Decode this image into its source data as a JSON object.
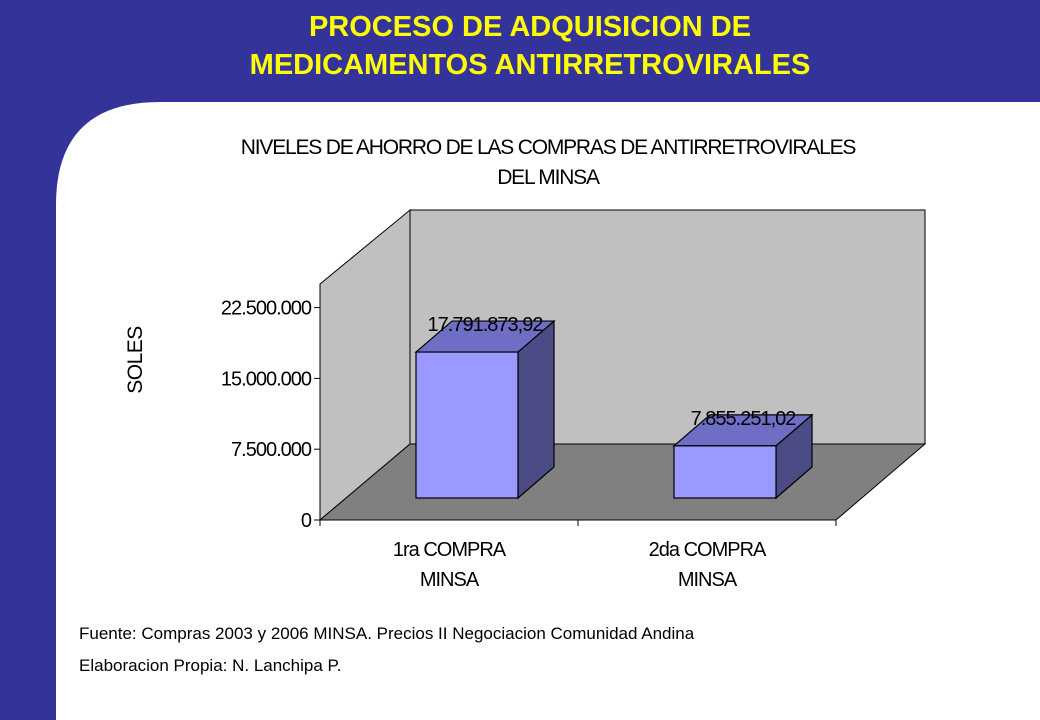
{
  "slide": {
    "title_line1": "PROCESO DE ADQUISICION DE",
    "title_line2": "MEDICAMENTOS ANTIRRETROVIRALES",
    "colors": {
      "frame": "#333399",
      "title": "#ffff00"
    }
  },
  "chart_data": {
    "type": "bar",
    "title_line1": "NIVELES DE AHORRO DE LAS COMPRAS DE ANTIRRETROVIRALES",
    "title_line2": "DEL MINSA",
    "ylabel": "SOLES",
    "xlabel": "",
    "ylim": [
      0,
      25000000
    ],
    "yticks": [
      0,
      7500000,
      15000000,
      22500000
    ],
    "ytick_labels": [
      "0",
      "7.500.000",
      "15.000.000",
      "22.500.000"
    ],
    "categories": [
      [
        "1ra COMPRA",
        "MINSA"
      ],
      [
        "2da COMPRA",
        "MINSA"
      ]
    ],
    "values": [
      17791873.92,
      7855251.02
    ],
    "value_labels": [
      "17.791.873,92",
      "7.855.251,02"
    ],
    "grid": false,
    "legend": "none",
    "three_d": true,
    "colors": {
      "bar_front": "#9999ff",
      "bar_side": "#4b4b86",
      "bar_top": "#6e6ec4",
      "wall": "#c0c0c0",
      "floor": "#808080"
    }
  },
  "footnotes": {
    "source": "Fuente: Compras 2003 y 2006 MINSA. Precios II Negociacion Comunidad Andina",
    "author": "Elaboracion Propia: N. Lanchipa P."
  }
}
